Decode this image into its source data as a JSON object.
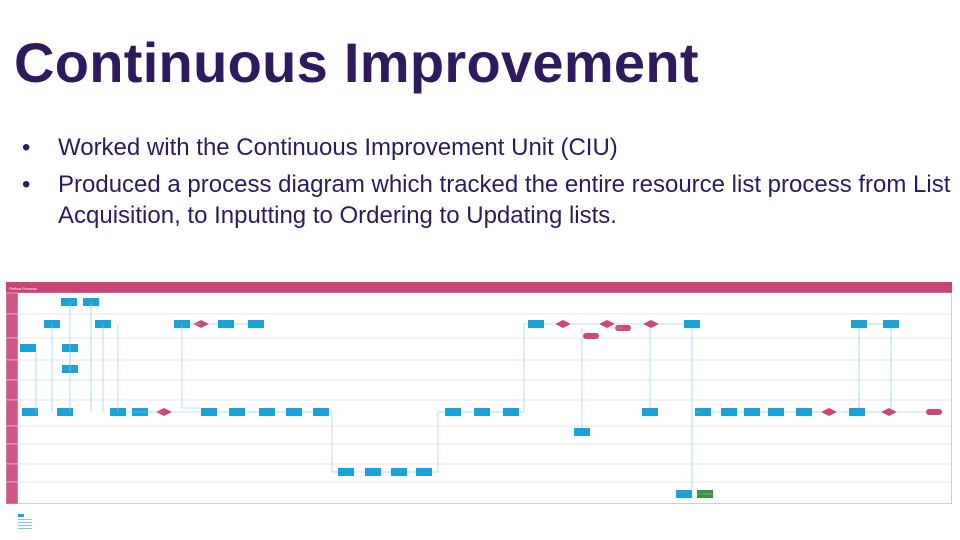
{
  "slide": {
    "title": "Continuous Improvement",
    "bullets": [
      "Worked with the Continuous Improvement Unit (CIU)",
      "Produced a process diagram which tracked the entire resource list process from List Acquisition, to Inputting to Ordering to Updating lists."
    ],
    "bullet_glyph": "•"
  },
  "diagram": {
    "header_label": "Reflow Process",
    "colors": {
      "header": "#c8457a",
      "process": "#1ba3d9",
      "decision": "#d0467a",
      "end": "#3f8f3f",
      "lines": "#7fc6e6",
      "lane_border": "#cfcfcf"
    }
  }
}
